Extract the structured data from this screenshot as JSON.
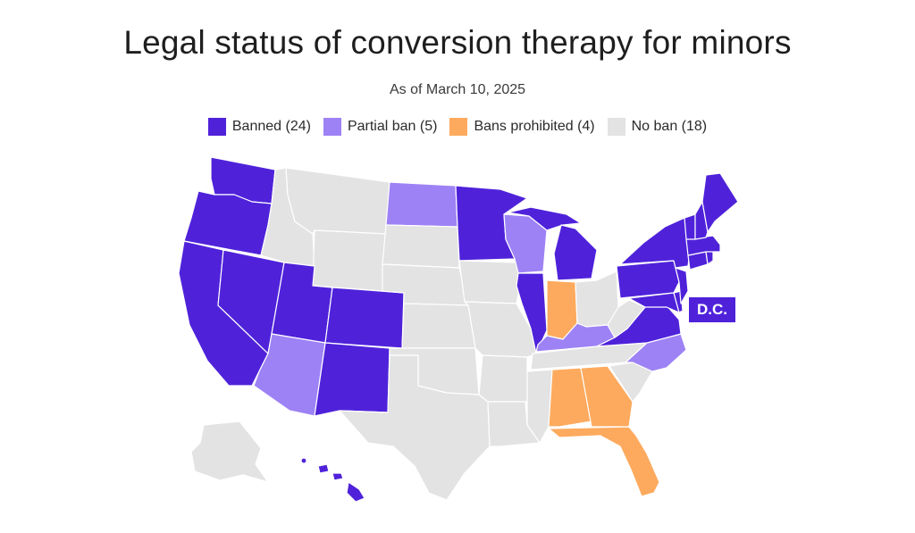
{
  "title": "Legal status of conversion therapy for minors",
  "subtitle": "As of March 10, 2025",
  "colors": {
    "banned": "#4f22da",
    "partial": "#9d82f5",
    "prohibited": "#fdaa5e",
    "none": "#e3e3e3"
  },
  "legend": [
    {
      "key": "banned",
      "label": "Banned (24)"
    },
    {
      "key": "partial",
      "label": "Partial ban (5)"
    },
    {
      "key": "prohibited",
      "label": "Bans prohibited (4)"
    },
    {
      "key": "none",
      "label": "No ban (18)"
    }
  ],
  "dc_label": "D.C.",
  "state_status": {
    "WA": "banned",
    "OR": "banned",
    "CA": "banned",
    "NV": "banned",
    "UT": "banned",
    "CO": "banned",
    "NM": "banned",
    "MN": "banned",
    "IL": "banned",
    "MI": "banned",
    "VA": "banned",
    "MD": "banned",
    "DE": "banned",
    "NJ": "banned",
    "PA": "banned",
    "NY": "banned",
    "CT": "banned",
    "RI": "banned",
    "MA": "banned",
    "VT": "banned",
    "NH": "banned",
    "ME": "banned",
    "HI": "banned",
    "DC": "banned",
    "AZ": "partial",
    "ND": "partial",
    "WI": "partial",
    "KY": "partial",
    "NC": "partial",
    "IN": "prohibited",
    "AL": "prohibited",
    "GA": "prohibited",
    "FL": "prohibited",
    "ID": "none",
    "MT": "none",
    "WY": "none",
    "SD": "none",
    "NE": "none",
    "KS": "none",
    "OK": "none",
    "TX": "none",
    "IA": "none",
    "MO": "none",
    "AR": "none",
    "LA": "none",
    "MS": "none",
    "TN": "none",
    "OH": "none",
    "WV": "none",
    "SC": "none",
    "AK": "none"
  }
}
